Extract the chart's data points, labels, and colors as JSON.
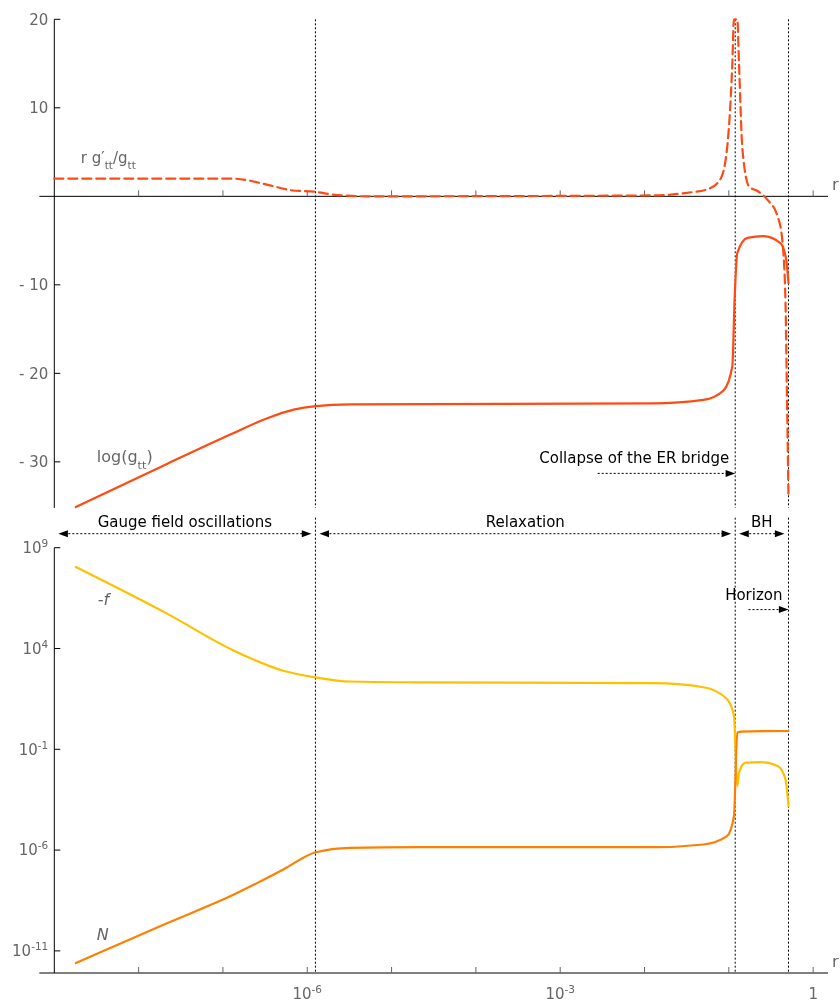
{
  "chart_data": [
    {
      "type": "line",
      "xlabel": "r",
      "xlim": [
        1e-09,
        1.5
      ],
      "log": "x",
      "tick_labels": "y",
      "ylim": [
        -35.2,
        20
      ],
      "xticks": [
        {
          "value": 1e-08,
          "label": null
        },
        {
          "value": 1e-07,
          "label": null
        },
        {
          "value": 1e-06,
          "label": null
        },
        {
          "value": 1e-05,
          "label": null
        },
        {
          "value": 0.0001,
          "label": null
        },
        {
          "value": 0.001,
          "label": null
        },
        {
          "value": 0.01,
          "label": null
        },
        {
          "value": 0.1,
          "label": null
        },
        {
          "value": 1,
          "label": null
        }
      ],
      "yticks": [
        20,
        10,
        {
          "value": -10,
          "label": "- 10"
        },
        {
          "value": -20,
          "label": "- 20"
        },
        {
          "value": -30,
          "label": "- 30"
        }
      ],
      "series": [
        {
          "name": "r g′$_{tt}$/g$_{tt}$",
          "color": "#ff4a12",
          "line_style": "dashed",
          "x": [
            1e-09,
            1.3e-07,
            3.4e-07,
            6.3e-07,
            1.26e-06,
            2e-06,
            5.1e-06,
            0.0126,
            0.032,
            0.056,
            0.079,
            0.095,
            0.11,
            0.115,
            0.126,
            0.132,
            0.145,
            0.174,
            0.219,
            0.288,
            0.38,
            0.43,
            0.47,
            0.49,
            0.51
          ],
          "values": [
            2.0,
            2.0,
            1.3,
            0.7,
            0.5,
            0.2,
            0,
            0.1,
            0.4,
            0.8,
            1.9,
            5.3,
            15,
            20,
            20,
            15,
            5.3,
            1.1,
            0.6,
            -0.4,
            -2.3,
            -4.9,
            -12,
            -23,
            -34.1
          ]
        },
        {
          "name": "log(g$_{tt}$)",
          "color": "#ff4a12",
          "line_style": "solid",
          "x": [
            1.8e-09,
            2.2e-08,
            1.3e-07,
            3.3e-07,
            6.9e-07,
            1.26e-06,
            3.2e-06,
            0.0126,
            0.05,
            0.087,
            0.11,
            0.117,
            0.126,
            0.166,
            0.257,
            0.41,
            0.48,
            0.51
          ],
          "values": [
            -35.1,
            -30.2,
            -26.8,
            -25.1,
            -24.1,
            -23.7,
            -23.5,
            -23.4,
            -23.0,
            -21.9,
            -19.2,
            -11.7,
            -6.4,
            -4.7,
            -4.5,
            -5.3,
            -7.2,
            -9.8
          ]
        }
      ],
      "ref_lines": [
        {
          "axis": "x",
          "value": 1.25e-06,
          "line_style": "dotted"
        },
        {
          "axis": "x",
          "value": 0.119,
          "line_style": "dotted"
        },
        {
          "axis": "x",
          "value": 0.51,
          "line_style": "dotted"
        }
      ],
      "annotations": [
        {
          "text": "Collapse of the ER bridge",
          "x": 0.119,
          "y": -31.3
        }
      ]
    },
    {
      "type": "line",
      "xlabel": "r",
      "xlim": [
        1e-09,
        1.5
      ],
      "log": "xy",
      "ylim": [
        8e-13,
        1000000000.0
      ],
      "xticks": [
        {
          "value": 1e-08,
          "label": null
        },
        {
          "value": 1e-07,
          "label": null
        },
        {
          "value": 1e-06,
          "label": "10$^{-6}$"
        },
        {
          "value": 1e-05,
          "label": null
        },
        {
          "value": 0.0001,
          "label": null
        },
        {
          "value": 0.001,
          "label": "10$^{-3}$"
        },
        {
          "value": 0.01,
          "label": null
        },
        {
          "value": 0.1,
          "label": null
        },
        1
      ],
      "yticks": [
        {
          "value": 1000000000.0,
          "label": "10$^{9}$"
        },
        {
          "value": 10000.0,
          "label": "10$^{4}$"
        },
        {
          "value": 0.1,
          "label": "10$^{-1}$"
        },
        {
          "value": 1e-06,
          "label": "10$^{-6}$"
        },
        {
          "value": 1e-11,
          "label": "10$^{-11}$"
        }
      ],
      "series": [
        {
          "name": "-f",
          "color": "#ffc000",
          "x": [
            1.8e-09,
            2.2e-08,
            1.35e-07,
            5.2e-07,
            1.26e-06,
            3.2e-06,
            2e-05,
            0.0126,
            0.05,
            0.095,
            0.115,
            0.126,
            0.132,
            0.158,
            0.24,
            0.38,
            0.47,
            0.51
          ],
          "values": [
            110000000.0,
            520000.0,
            7800.0,
            790,
            370,
            230,
            210,
            190,
            120,
            31,
            4.6,
            0.0015,
            0.0069,
            0.022,
            0.023,
            0.015,
            0.0032,
            0.00015
          ]
        },
        {
          "name": "N",
          "color": "#ff8000",
          "x": [
            1.8e-09,
            2.2e-08,
            1.35e-07,
            5.2e-07,
            1.26e-06,
            3.2e-06,
            2e-05,
            0.0126,
            0.05,
            0.095,
            0.115,
            0.126,
            0.141,
            0.51
          ],
          "values": [
            2.5e-12,
            2.4e-10,
            6.2e-09,
            1.1e-07,
            7.8e-07,
            1.3e-06,
            1.4e-06,
            1.4e-06,
            1.9e-06,
            4.9e-06,
            4.8e-05,
            0.68,
            0.76,
            0.81
          ]
        }
      ],
      "ref_lines": [
        {
          "axis": "x",
          "value": 1.25e-06,
          "line_style": "dotted"
        },
        {
          "axis": "x",
          "value": 0.119,
          "line_style": "dotted"
        },
        {
          "axis": "x",
          "value": 0.51,
          "line_style": "dotted"
        }
      ],
      "annotations": [
        "Gauge field oscillations",
        "Relaxation",
        "BH",
        {
          "text": "Horizon",
          "x": 0.51,
          "y": 850000
        }
      ]
    }
  ]
}
